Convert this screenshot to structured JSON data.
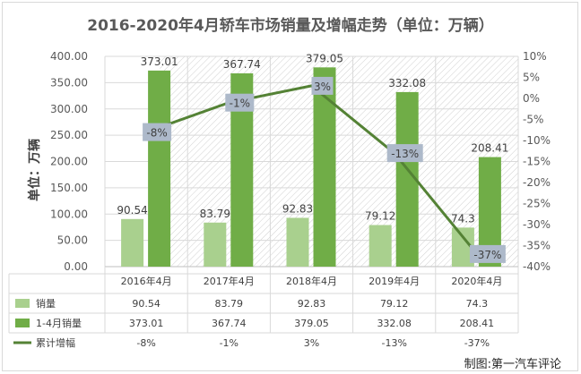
{
  "title": "2016-2020年4月轿车市场销量及增幅走势（单位：万辆）",
  "y_axis_title": "单位：万辆",
  "credit": "制图:第一汽车评论",
  "colors": {
    "monthly_bar": "#a9d08e",
    "cumulative_bar": "#70ad47",
    "growth_line": "#548235",
    "label_box": "#adb9ca"
  },
  "chart_data": {
    "type": "bar",
    "categories": [
      "2016年4月",
      "2017年4月",
      "2018年4月",
      "2019年4月",
      "2020年4月"
    ],
    "series": [
      {
        "name": "销量",
        "values": [
          90.54,
          83.79,
          92.83,
          79.12,
          74.3
        ],
        "axis": "left",
        "type": "bar"
      },
      {
        "name": "1-4月销量",
        "values": [
          373.01,
          367.74,
          379.05,
          332.08,
          208.41
        ],
        "axis": "left",
        "type": "bar"
      },
      {
        "name": "累计增幅",
        "values": [
          -8,
          -1,
          3,
          -13,
          -37
        ],
        "axis": "right",
        "type": "line",
        "unit": "%"
      }
    ],
    "ylim": [
      0,
      400
    ],
    "y_ticks": [
      "0.00",
      "50.00",
      "100.00",
      "150.00",
      "200.00",
      "250.00",
      "300.00",
      "350.00",
      "400.00"
    ],
    "y2lim": [
      -40,
      10
    ],
    "y2_ticks": [
      "10%",
      "5%",
      "0%",
      "-5%",
      "-10%",
      "-15%",
      "-20%",
      "-25%",
      "-30%",
      "-35%",
      "-40%"
    ],
    "table": {
      "rows": [
        {
          "label": "销量",
          "cells": [
            "90.54",
            "83.79",
            "92.83",
            "79.12",
            "74.3"
          ]
        },
        {
          "label": "1-4月销量",
          "cells": [
            "373.01",
            "367.74",
            "379.05",
            "332.08",
            "208.41"
          ]
        },
        {
          "label": "累计增幅",
          "cells": [
            "-8%",
            "-1%",
            "3%",
            "-13%",
            "-37%"
          ]
        }
      ]
    },
    "bar_labels_monthly": [
      "90.54",
      "83.79",
      "92.83",
      "79.12",
      "74.3"
    ],
    "bar_labels_cumulative": [
      "373.01",
      "367.74",
      "379.05",
      "332.08",
      "208.41"
    ],
    "line_labels": [
      "-8%",
      "-1%",
      "3%",
      "-13%",
      "-37%"
    ],
    "grid": true,
    "legend": "data-table"
  }
}
